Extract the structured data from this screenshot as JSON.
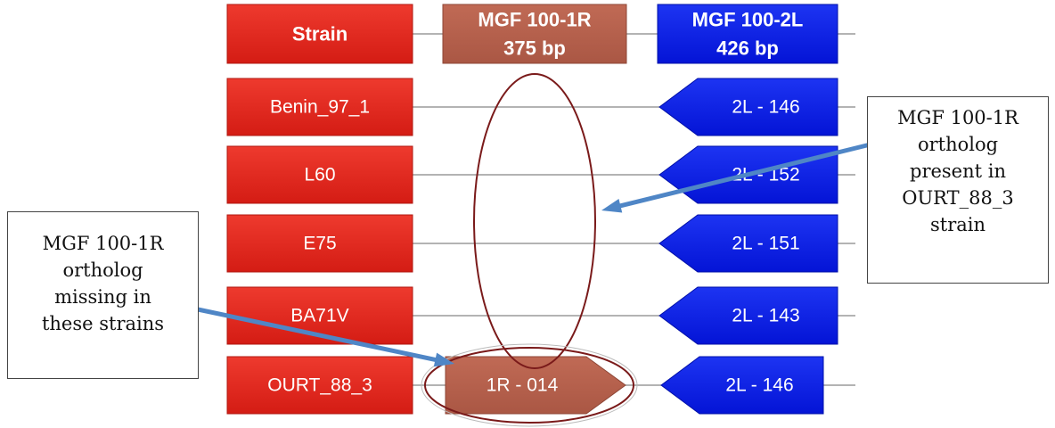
{
  "headers": {
    "strain": "Strain",
    "gene_1r": [
      "MGF 100-1R",
      "375 bp"
    ],
    "gene_2l": [
      "MGF 100-2L",
      "426 bp"
    ]
  },
  "rows": [
    {
      "strain": "Benin_97_1",
      "gene_1r": "",
      "gene_2l": "2L - 146"
    },
    {
      "strain": "L60",
      "gene_1r": "",
      "gene_2l": "2L - 152"
    },
    {
      "strain": "E75",
      "gene_1r": "",
      "gene_2l": "2L - 151"
    },
    {
      "strain": "BA71V",
      "gene_1r": "",
      "gene_2l": "2L - 143"
    },
    {
      "strain": "OURT_88_3",
      "gene_1r": "1R - 014",
      "gene_2l": "2L - 146"
    }
  ],
  "annotations": {
    "missing": [
      "MGF 100-1R",
      "ortholog",
      "missing in",
      "these strains"
    ],
    "present": [
      "MGF 100-1R",
      "ortholog",
      "present in",
      "OURT_88_3",
      "strain"
    ]
  },
  "colors": {
    "strain_box": "#e3231c",
    "gene_1r": "#b5604b",
    "gene_2l": "#0a1fe6",
    "ellipse": "#7a1a1a",
    "arrow": "#4f86c6",
    "line": "#9a9a9a"
  }
}
